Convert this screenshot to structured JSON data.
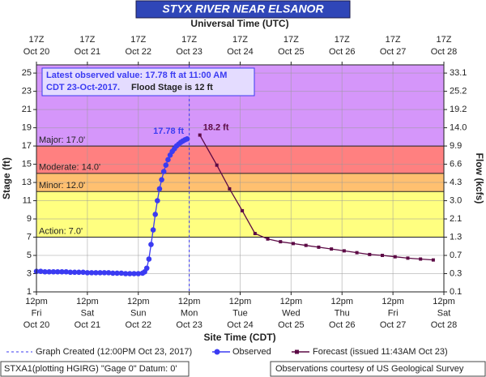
{
  "chart_data": {
    "type": "line",
    "title": "STYX RIVER NEAR ELSANOR",
    "top_axis_title": "Universal Time (UTC)",
    "x_axis_title": "Site Time (CDT)",
    "y_axis_title": "Stage (ft)",
    "y2_axis_title": "Flow (kcfs)",
    "xlim": [
      "2017-10-20T12:00",
      "2017-10-28T12:00"
    ],
    "xticks": [
      {
        "value": "2017-10-20T12:00",
        "label": [
          "12pm",
          "Fri",
          "Oct 20"
        ]
      },
      {
        "value": "2017-10-21T12:00",
        "label": [
          "12pm",
          "Sat",
          "Oct 21"
        ]
      },
      {
        "value": "2017-10-22T12:00",
        "label": [
          "12pm",
          "Sun",
          "Oct 22"
        ]
      },
      {
        "value": "2017-10-23T12:00",
        "label": [
          "12pm",
          "Mon",
          "Oct 23"
        ]
      },
      {
        "value": "2017-10-24T12:00",
        "label": [
          "12pm",
          "Tue",
          "Oct 24"
        ]
      },
      {
        "value": "2017-10-25T12:00",
        "label": [
          "12pm",
          "Wed",
          "Oct 25"
        ]
      },
      {
        "value": "2017-10-26T12:00",
        "label": [
          "12pm",
          "Thu",
          "Oct 26"
        ]
      },
      {
        "value": "2017-10-27T12:00",
        "label": [
          "12pm",
          "Fri",
          "Oct 27"
        ]
      },
      {
        "value": "2017-10-28T12:00",
        "label": [
          "12pm",
          "Sat",
          "Oct 28"
        ]
      }
    ],
    "x2ticks": [
      {
        "value": "2017-10-20T12:00",
        "label": [
          "17Z",
          "Oct 20"
        ]
      },
      {
        "value": "2017-10-21T12:00",
        "label": [
          "17Z",
          "Oct 21"
        ]
      },
      {
        "value": "2017-10-22T12:00",
        "label": [
          "17Z",
          "Oct 22"
        ]
      },
      {
        "value": "2017-10-23T12:00",
        "label": [
          "17Z",
          "Oct 23"
        ]
      },
      {
        "value": "2017-10-24T12:00",
        "label": [
          "17Z",
          "Oct 24"
        ]
      },
      {
        "value": "2017-10-25T12:00",
        "label": [
          "17Z",
          "Oct 25"
        ]
      },
      {
        "value": "2017-10-26T12:00",
        "label": [
          "17Z",
          "Oct 26"
        ]
      },
      {
        "value": "2017-10-27T12:00",
        "label": [
          "17Z",
          "Oct 27"
        ]
      },
      {
        "value": "2017-10-28T12:00",
        "label": [
          "17Z",
          "Oct 28"
        ]
      }
    ],
    "ylim": [
      1,
      25.9
    ],
    "yticks": [
      1,
      3,
      5,
      7,
      9,
      11,
      13,
      15,
      17,
      19,
      21,
      23,
      25
    ],
    "y2ticks": [
      {
        "value": 0.1,
        "label": "0.1"
      },
      {
        "value": 0.3,
        "label": "0.3"
      },
      {
        "value": 0.7,
        "label": "0.7"
      },
      {
        "value": 1.3,
        "label": "1.3"
      },
      {
        "value": 2.1,
        "label": "2.1"
      },
      {
        "value": 3.0,
        "label": "3.0"
      },
      {
        "value": 4.3,
        "label": "4.3"
      },
      {
        "value": 6.6,
        "label": "6.6"
      },
      {
        "value": 9.9,
        "label": "9.9"
      },
      {
        "value": 14.0,
        "label": "14.0"
      },
      {
        "value": 19.2,
        "label": "19.2"
      },
      {
        "value": 25.2,
        "label": "25.2"
      },
      {
        "value": 33.1,
        "label": "33.1"
      }
    ],
    "y2tick_stages": [
      1,
      3,
      5,
      7,
      9,
      11,
      13,
      15,
      17,
      19,
      21,
      23,
      25
    ],
    "grid": true,
    "flood_levels": [
      {
        "label": "Action: 7.0'",
        "value": 7,
        "color": "#ffff80"
      },
      {
        "label": "Minor: 12.0'",
        "value": 12,
        "color": "#ffc070"
      },
      {
        "label": "Moderate: 14.0'",
        "value": 14,
        "color": "#ff8080"
      },
      {
        "label": "Major: 17.0'",
        "value": 17,
        "color": "#d596fa"
      }
    ],
    "graph_created": {
      "x": "2017-10-23T12:00",
      "label": "Graph Created (12:00PM Oct 23, 2017)"
    },
    "series": [
      {
        "name": "Observed",
        "color": "#3b3bf2",
        "marker": "circle",
        "x": [
          "2017-10-20T12:00",
          "2017-10-20T14:00",
          "2017-10-20T16:00",
          "2017-10-20T18:00",
          "2017-10-20T20:00",
          "2017-10-20T22:00",
          "2017-10-21T00:00",
          "2017-10-21T02:00",
          "2017-10-21T04:00",
          "2017-10-21T06:00",
          "2017-10-21T08:00",
          "2017-10-21T10:00",
          "2017-10-21T12:00",
          "2017-10-21T14:00",
          "2017-10-21T16:00",
          "2017-10-21T18:00",
          "2017-10-21T20:00",
          "2017-10-21T22:00",
          "2017-10-22T00:00",
          "2017-10-22T02:00",
          "2017-10-22T04:00",
          "2017-10-22T06:00",
          "2017-10-22T08:00",
          "2017-10-22T10:00",
          "2017-10-22T12:00",
          "2017-10-22T14:00",
          "2017-10-22T15:00",
          "2017-10-22T16:00",
          "2017-10-22T17:00",
          "2017-10-22T18:00",
          "2017-10-22T19:00",
          "2017-10-22T20:00",
          "2017-10-22T21:00",
          "2017-10-22T22:00",
          "2017-10-22T23:00",
          "2017-10-23T00:00",
          "2017-10-23T01:00",
          "2017-10-23T02:00",
          "2017-10-23T03:00",
          "2017-10-23T04:00",
          "2017-10-23T05:00",
          "2017-10-23T06:00",
          "2017-10-23T07:00",
          "2017-10-23T08:00",
          "2017-10-23T09:00",
          "2017-10-23T10:00",
          "2017-10-23T11:00"
        ],
        "values": [
          3.25,
          3.25,
          3.2,
          3.2,
          3.2,
          3.2,
          3.2,
          3.2,
          3.15,
          3.15,
          3.15,
          3.15,
          3.1,
          3.1,
          3.1,
          3.1,
          3.1,
          3.1,
          3.05,
          3.05,
          3.05,
          3.0,
          3.0,
          3.0,
          3.0,
          3.05,
          3.2,
          3.6,
          4.6,
          6.2,
          7.8,
          9.5,
          11.0,
          12.3,
          13.3,
          14.2,
          14.9,
          15.5,
          16.0,
          16.4,
          16.7,
          17.0,
          17.2,
          17.4,
          17.55,
          17.68,
          17.78
        ],
        "value_labels": [
          null,
          null,
          null,
          null,
          null,
          null,
          null,
          null,
          null,
          null,
          null,
          null,
          null,
          null,
          null,
          null,
          null,
          null,
          null,
          null,
          null,
          null,
          null,
          null,
          null,
          null,
          null,
          null,
          null,
          null,
          null,
          null,
          null,
          null,
          null,
          null,
          null,
          null,
          null,
          null,
          null,
          null,
          null,
          null,
          null,
          null,
          "17.78 ft"
        ]
      },
      {
        "name": "Forecast (issued 11:43AM Oct 23)",
        "color": "#5c0a45",
        "marker": "square",
        "x": [
          "2017-10-23T17:00",
          "2017-10-24T01:00",
          "2017-10-24T07:00",
          "2017-10-24T13:00",
          "2017-10-24T19:00",
          "2017-10-25T01:00",
          "2017-10-25T07:00",
          "2017-10-25T13:00",
          "2017-10-25T19:00",
          "2017-10-26T01:00",
          "2017-10-26T07:00",
          "2017-10-26T13:00",
          "2017-10-26T19:00",
          "2017-10-27T01:00",
          "2017-10-27T07:00",
          "2017-10-27T13:00",
          "2017-10-27T19:00",
          "2017-10-28T01:00",
          "2017-10-28T07:00"
        ],
        "values": [
          18.2,
          14.9,
          12.3,
          9.9,
          7.4,
          6.8,
          6.5,
          6.3,
          6.1,
          5.9,
          5.7,
          5.5,
          5.3,
          5.1,
          5.0,
          4.85,
          4.7,
          4.6,
          4.5
        ],
        "value_labels": [
          "18.2 ft",
          null,
          null,
          null,
          null,
          null,
          null,
          null,
          null,
          null,
          null,
          null,
          null,
          null,
          null,
          null,
          null,
          null,
          null
        ]
      }
    ],
    "info_box": {
      "line1": "Latest observed value: 17.78 ft at 11:00 AM",
      "line2a": "CDT 23-Oct-2017.",
      "line2b": "Flood Stage is 12 ft"
    },
    "footer": {
      "left": "STXA1(plotting HGIRG) \"Gage 0\" Datum: 0'",
      "right": "Observations courtesy of US Geological Survey"
    }
  }
}
